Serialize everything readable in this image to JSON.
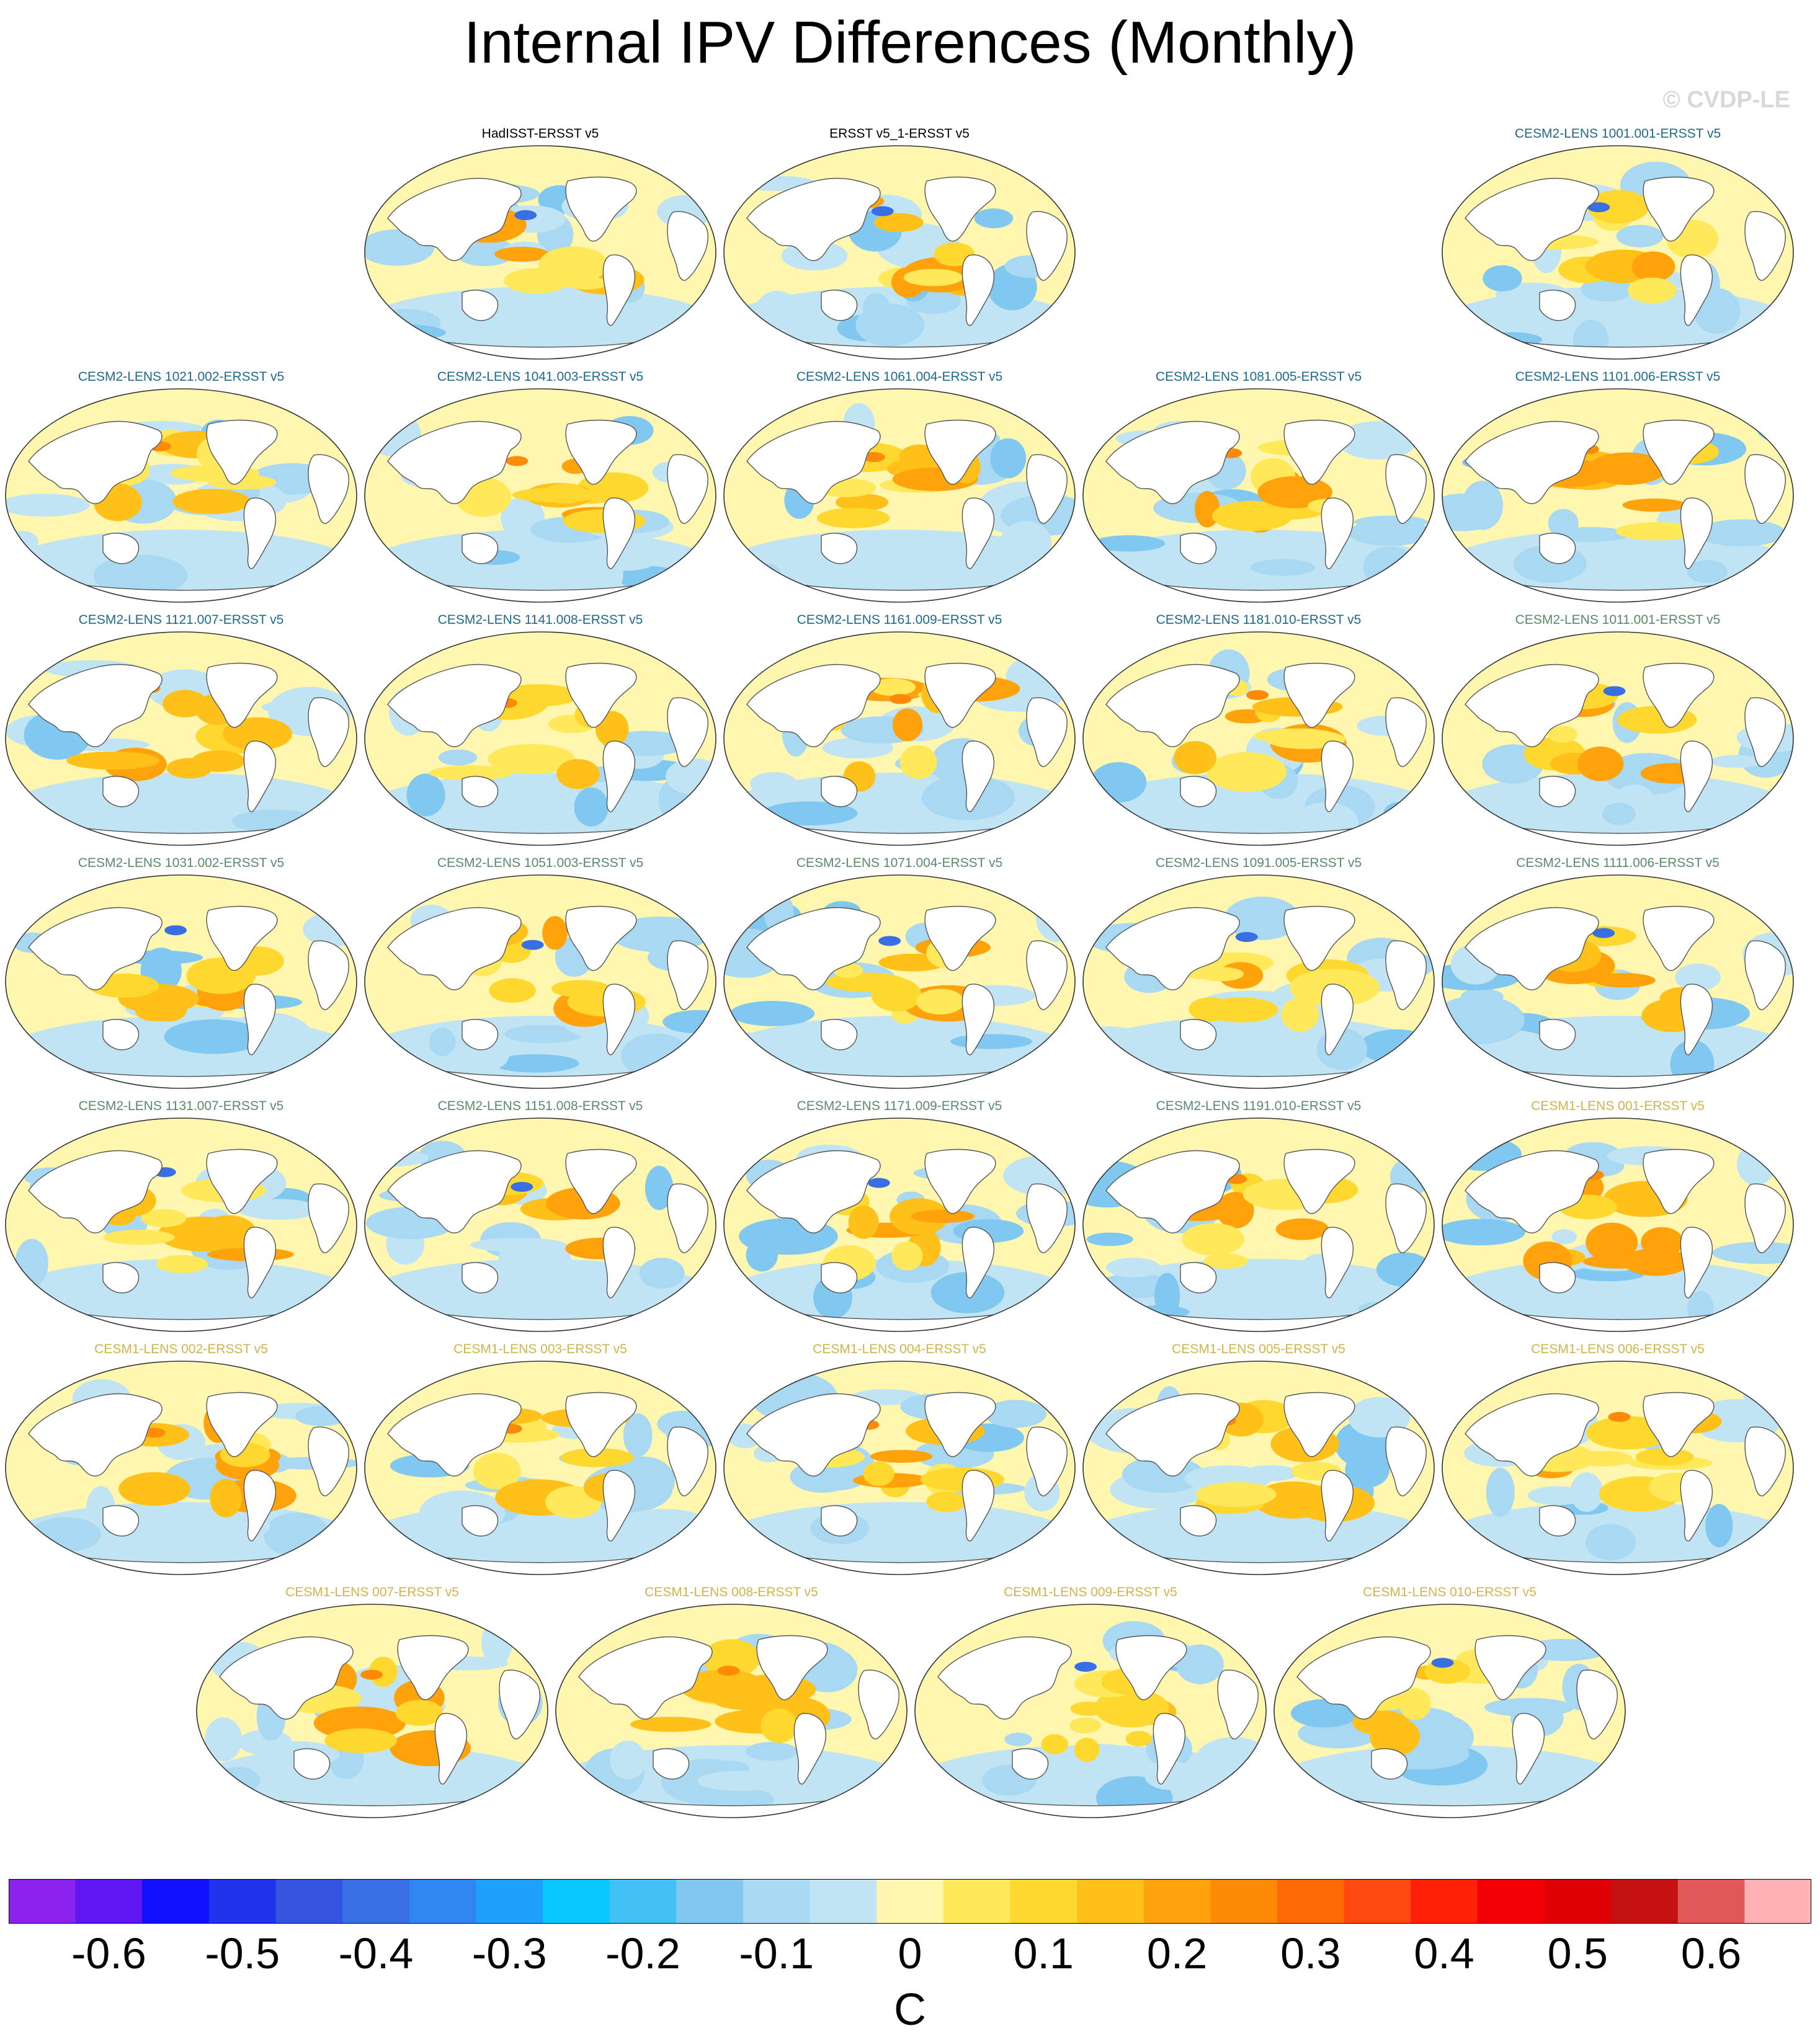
{
  "title": "Internal IPV Differences (Monthly)",
  "watermark": "© CVDP-LE",
  "units": "C",
  "colorbar": {
    "tick_labels": [
      "-0.6",
      "-0.5",
      "-0.4",
      "-0.3",
      "-0.2",
      "-0.1",
      "0",
      "0.1",
      "0.2",
      "0.3",
      "0.4",
      "0.5",
      "0.6"
    ],
    "colors": [
      "#8b22ee",
      "#5f16f0",
      "#1010ff",
      "#2233ee",
      "#3355e0",
      "#3a6fe4",
      "#2f86f0",
      "#1fa0ff",
      "#08c8ff",
      "#40c0f5",
      "#80c8f0",
      "#a8d8f2",
      "#c0e4f4",
      "#fff7b0",
      "#ffe85a",
      "#ffd82f",
      "#ffc01a",
      "#ffa20c",
      "#ff8a08",
      "#ff6a06",
      "#ff4810",
      "#ff2008",
      "#f20006",
      "#de0004",
      "#c41010",
      "#e05858",
      "#ffb0b0"
    ]
  },
  "panels": [
    {
      "title": "HadISST-ERSST v5",
      "color": "#000000"
    },
    {
      "title": "ERSST v5_1-ERSST v5",
      "color": "#000000"
    },
    {
      "title": "CESM2-LENS 1001.001-ERSST v5",
      "color": "#1f6a8c"
    },
    {
      "title": "CESM2-LENS 1021.002-ERSST v5",
      "color": "#1f6a8c"
    },
    {
      "title": "CESM2-LENS 1041.003-ERSST v5",
      "color": "#1f6a8c"
    },
    {
      "title": "CESM2-LENS 1061.004-ERSST v5",
      "color": "#1f6a8c"
    },
    {
      "title": "CESM2-LENS 1081.005-ERSST v5",
      "color": "#1f6a8c"
    },
    {
      "title": "CESM2-LENS 1101.006-ERSST v5",
      "color": "#1f6a8c"
    },
    {
      "title": "CESM2-LENS 1121.007-ERSST v5",
      "color": "#1f6a8c"
    },
    {
      "title": "CESM2-LENS 1141.008-ERSST v5",
      "color": "#1f6a8c"
    },
    {
      "title": "CESM2-LENS 1161.009-ERSST v5",
      "color": "#1f6a8c"
    },
    {
      "title": "CESM2-LENS 1181.010-ERSST v5",
      "color": "#1f6a8c"
    },
    {
      "title": "CESM2-LENS 1011.001-ERSST v5",
      "color": "#5a8a6a"
    },
    {
      "title": "CESM2-LENS 1031.002-ERSST v5",
      "color": "#5a8a6a"
    },
    {
      "title": "CESM2-LENS 1051.003-ERSST v5",
      "color": "#5a8a6a"
    },
    {
      "title": "CESM2-LENS 1071.004-ERSST v5",
      "color": "#5a8a6a"
    },
    {
      "title": "CESM2-LENS 1091.005-ERSST v5",
      "color": "#5a8a6a"
    },
    {
      "title": "CESM2-LENS 1111.006-ERSST v5",
      "color": "#5a8a6a"
    },
    {
      "title": "CESM2-LENS 1131.007-ERSST v5",
      "color": "#5a8a6a"
    },
    {
      "title": "CESM2-LENS 1151.008-ERSST v5",
      "color": "#5a8a6a"
    },
    {
      "title": "CESM2-LENS 1171.009-ERSST v5",
      "color": "#5a8a6a"
    },
    {
      "title": "CESM2-LENS 1191.010-ERSST v5",
      "color": "#5a8a6a"
    },
    {
      "title": "CESM1-LENS 001-ERSST v5",
      "color": "#d2b44c"
    },
    {
      "title": "CESM1-LENS 002-ERSST v5",
      "color": "#d2b44c"
    },
    {
      "title": "CESM1-LENS 003-ERSST v5",
      "color": "#d2b44c"
    },
    {
      "title": "CESM1-LENS 004-ERSST v5",
      "color": "#d2b44c"
    },
    {
      "title": "CESM1-LENS 005-ERSST v5",
      "color": "#d2b44c"
    },
    {
      "title": "CESM1-LENS 006-ERSST v5",
      "color": "#d2b44c"
    },
    {
      "title": "CESM1-LENS 007-ERSST v5",
      "color": "#d2b44c"
    },
    {
      "title": "CESM1-LENS 008-ERSST v5",
      "color": "#d2b44c"
    },
    {
      "title": "CESM1-LENS 009-ERSST v5",
      "color": "#d2b44c"
    },
    {
      "title": "CESM1-LENS 010-ERSST v5",
      "color": "#d2b44c"
    }
  ]
}
